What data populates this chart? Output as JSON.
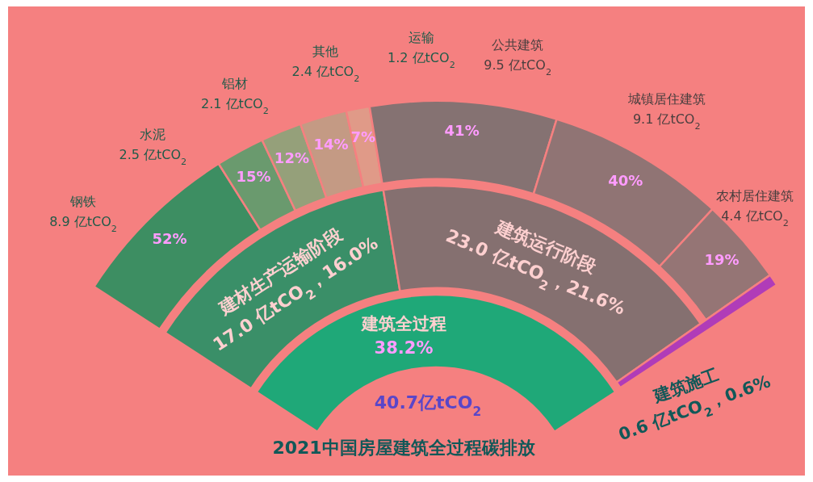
{
  "chart_data": {
    "type": "other",
    "title": "2021中国房屋建筑全过程碳排放",
    "categories": [
      "建筑全过程",
      "建材生产运输阶段",
      "钢铁",
      "水泥",
      "铝材",
      "其他",
      "运输",
      "建筑运行阶段",
      "公共建筑",
      "城镇居住建筑",
      "农村居住建筑",
      "建筑施工"
    ],
    "series": [
      {
        "values": [
          40.7,
          null,
          null,
          null,
          null,
          null,
          null,
          null,
          null,
          null,
          null,
          null
        ],
        "colors": [
          "#1fa878",
          null,
          null,
          null,
          null,
          null,
          null,
          null,
          null,
          null,
          null,
          null
        ],
        "value_labels": [
          "40.7亿tCO$_{2}$",
          null,
          null,
          null,
          null,
          null,
          null,
          null,
          null,
          null,
          null,
          null
        ]
      },
      {
        "values": [
          null,
          17.0,
          null,
          null,
          null,
          null,
          null,
          23.0,
          null,
          null,
          null,
          0.6
        ],
        "colors": [
          null,
          "#3a8f68",
          null,
          null,
          null,
          null,
          null,
          "#857070",
          null,
          null,
          null,
          "#b03cb8"
        ],
        "value_labels": [
          null,
          "17.0 亿tCO$_{2}$，",
          null,
          null,
          null,
          null,
          null,
          "23.0 亿tCO$_{2}$，",
          null,
          null,
          null,
          "0.6 亿tCO$_{2}$，"
        ]
      },
      {
        "values": [
          null,
          null,
          8.9,
          2.5,
          2.1,
          2.4,
          1.2,
          null,
          9.5,
          9.1,
          4.4,
          null
        ],
        "colors": [
          null,
          null,
          "#3d8e62",
          "#6a9a6e",
          "#95a07a",
          "#c49a84",
          "#e09a88",
          null,
          "#857272",
          "#907474",
          "#957575",
          null
        ],
        "value_labels": [
          null,
          null,
          "8.9 亿tCO$_{2}$",
          "2.5 亿tCO$_{2}$",
          "2.1 亿tCO$_{2}$",
          "2.4 亿tCO$_{2}$",
          "1.2 亿tCO$_{2}$",
          null,
          "9.5 亿tCO$_{2}$",
          "9.1 亿tCO$_{2}$",
          "4.4 亿tCO$_{2}$",
          null
        ]
      }
    ],
    "annotations": [
      "38.2%",
      "16.0%",
      "52%",
      "15%",
      "12%",
      "14%",
      "7%",
      "21.6%",
      "41%",
      "40%",
      "19%",
      "0.6%"
    ]
  }
}
